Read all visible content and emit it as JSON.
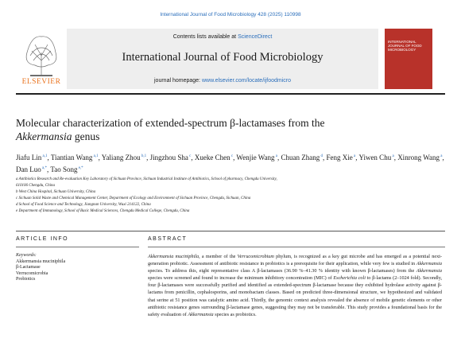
{
  "citation": "International Journal of Food Microbiology 428 (2025) 110998",
  "header": {
    "contents_prefix": "Contents lists available at",
    "contents_link": "ScienceDirect",
    "journal_name": "International Journal of Food Microbiology",
    "homepage_prefix": "journal homepage:",
    "homepage_link": "www.elsevier.com/locate/ijfoodmicro",
    "publisher_logo_text": "ELSEVIER",
    "cover_title": "INTERNATIONAL JOURNAL OF FOOD MICROBIOLOGY"
  },
  "article": {
    "title_line1": "Molecular characterization of extended-spectrum β-lactamases from the",
    "title_genus": "Akkermansia",
    "title_suffix": "genus",
    "authors": [
      {
        "name": "Jiafu Lin",
        "aff": "a,1"
      },
      {
        "name": "Tiantian Wang",
        "aff": "a,1"
      },
      {
        "name": "Yaliang Zhou",
        "aff": "b,1"
      },
      {
        "name": "Jingzhou Sha",
        "aff": "c"
      },
      {
        "name": "Xueke Chen",
        "aff": "c"
      },
      {
        "name": "Wenjie Wang",
        "aff": "a"
      },
      {
        "name": "Chuan Zhang",
        "aff": "d"
      },
      {
        "name": "Feng Xie",
        "aff": "a"
      },
      {
        "name": "Yiwen Chu",
        "aff": "a"
      },
      {
        "name": "Xinrong Wang",
        "aff": "a"
      },
      {
        "name": "Dan Luo",
        "aff": "a,*"
      },
      {
        "name": "Tao Song",
        "aff": "e,*"
      }
    ],
    "affiliations": [
      "a Antibiotics Research and Re-evaluation Key Laboratory of Sichuan Province, Sichuan Industrial Institute of Antibiotics, School of pharmacy, Chengdu University,",
      "610106 Chengdu, China",
      "b West China Hospital, Sichuan University, China",
      "c Sichuan Solid Waste and Chemical Management Center, Department of Ecology and Environment of Sichuan Province, Chengdu, Sichuan, China",
      "d School of Food Science and Technology, Jiangnan University, Wuxi 214122, China",
      "e Department of Immunology, School of Basic Medical Sciences, Chengdu Medical College, Chengdu, China"
    ]
  },
  "article_info": {
    "heading": "ARTICLE INFO",
    "keywords_label": "Keywords:",
    "keywords": [
      "Akkermansia muciniphila",
      "β-Lactamase",
      "Verrucomicrobia",
      "Probiotics"
    ]
  },
  "abstract": {
    "heading": "ABSTRACT",
    "text": "Akkermansia muciniphila, a member of the Verrucomicrobium phylum, is recognized as a key gut microbe and has emerged as a potential next-generation probiotic. Assessment of antibiotic resistance in probiotics is a prerequisite for their application, while very few is studied in Akkermansia species. To address this, eight representative class A β-lactamases (36.90 %–41.30 % identity with known β-lactamases) from the Akkermansia species were screened and found to increase the minimum inhibitory concentration (MIC) of Escherichia coli to β-lactams (2–1024 fold). Secondly, four β-lactamases were successfully purified and identified as extended-spectrum β-lactamase because they exhibited hydrolase activity against β-lactams from penicillin, cephalosporins, and monobactam classes. Based on predicted three-dimensional structure, we hypothesized and validated that serine at 51 position was catalytic amino acid. Thirdly, the genomic context analysis revealed the absence of mobile genetic elements or other antibiotic resistance genes surrounding β-lactamase genes, suggesting they may not be transferable. This study provides a foundational basis for the safety evaluation of Akkermansia species as probiotics."
  }
}
